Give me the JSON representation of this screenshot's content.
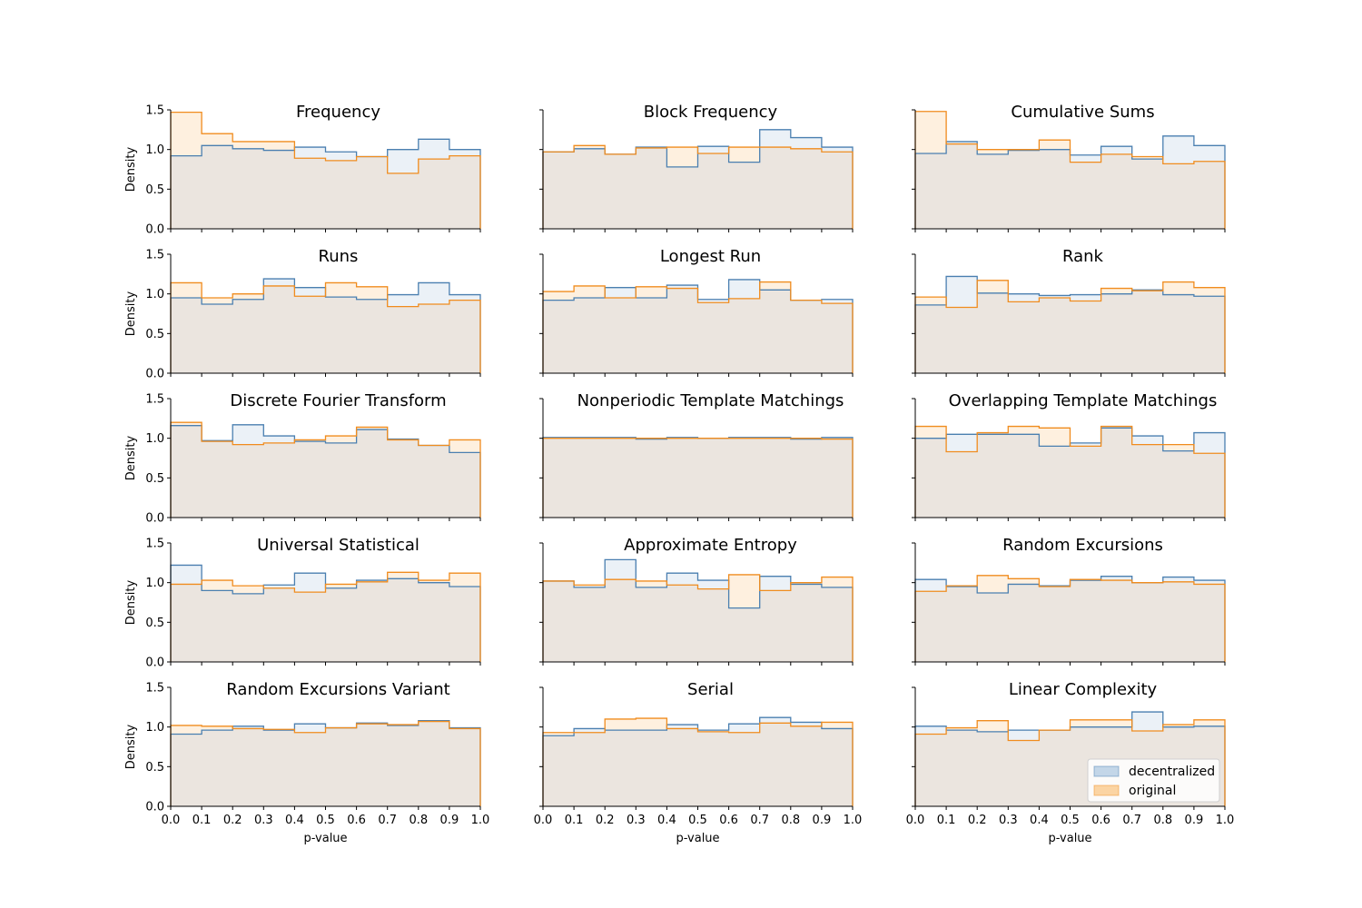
{
  "colors": {
    "decentralized": "#4a7fb0",
    "original": "#f08c1e",
    "decentralized_fill": "#dbe6f1",
    "original_fill": "#fde3c4",
    "overlap_fill": "#ebe5df"
  },
  "chart_data": {
    "type": "histogram",
    "xlabel": "p-value",
    "ylabel": "Density",
    "xlim": [
      0,
      1
    ],
    "ylim": [
      0,
      1.5
    ],
    "x_ticks": [
      "0.0",
      "0.1",
      "0.2",
      "0.3",
      "0.4",
      "0.5",
      "0.6",
      "0.7",
      "0.8",
      "0.9",
      "1.0"
    ],
    "y_ticks": [
      "0.0",
      "0.5",
      "1.0",
      "1.5"
    ],
    "bin_edges": [
      0,
      0.1,
      0.2,
      0.3,
      0.4,
      0.5,
      0.6,
      0.7,
      0.8,
      0.9,
      1.0
    ],
    "legend": {
      "position": "lower right",
      "entries": [
        "decentralized",
        "original"
      ]
    },
    "panels": [
      {
        "title": "Frequency",
        "decentralized": [
          0.92,
          1.05,
          1.01,
          0.99,
          1.03,
          0.97,
          0.91,
          1.0,
          1.13,
          1.0
        ],
        "original": [
          1.47,
          1.2,
          1.1,
          1.1,
          0.89,
          0.86,
          0.91,
          0.7,
          0.88,
          0.92
        ]
      },
      {
        "title": "Block Frequency",
        "decentralized": [
          0.97,
          1.01,
          0.94,
          1.03,
          0.78,
          1.04,
          0.84,
          1.25,
          1.15,
          1.03
        ],
        "original": [
          0.97,
          1.05,
          0.94,
          1.02,
          1.03,
          0.95,
          1.03,
          1.03,
          1.01,
          0.97
        ]
      },
      {
        "title": "Cumulative Sums",
        "decentralized": [
          0.95,
          1.1,
          0.94,
          0.99,
          1.0,
          0.93,
          1.04,
          0.88,
          1.17,
          1.05
        ],
        "original": [
          1.48,
          1.07,
          1.0,
          1.0,
          1.12,
          0.84,
          0.94,
          0.91,
          0.82,
          0.85
        ]
      },
      {
        "title": "Runs",
        "decentralized": [
          0.95,
          0.87,
          0.93,
          1.19,
          1.08,
          0.96,
          0.93,
          0.99,
          1.14,
          0.99
        ],
        "original": [
          1.14,
          0.95,
          1.0,
          1.1,
          0.97,
          1.14,
          1.09,
          0.84,
          0.87,
          0.92
        ]
      },
      {
        "title": "Longest Run",
        "decentralized": [
          0.92,
          0.95,
          1.08,
          0.95,
          1.11,
          0.93,
          1.18,
          1.05,
          0.92,
          0.93
        ],
        "original": [
          1.03,
          1.1,
          0.95,
          1.09,
          1.07,
          0.89,
          0.94,
          1.15,
          0.92,
          0.88
        ]
      },
      {
        "title": "Rank",
        "decentralized": [
          0.86,
          1.22,
          1.01,
          1.0,
          0.98,
          0.99,
          1.0,
          1.05,
          0.99,
          0.97
        ],
        "original": [
          0.96,
          0.83,
          1.17,
          0.9,
          0.95,
          0.91,
          1.07,
          1.04,
          1.15,
          1.08
        ]
      },
      {
        "title": "Discrete Fourier Transform",
        "decentralized": [
          1.16,
          0.97,
          1.17,
          1.03,
          0.96,
          0.94,
          1.11,
          0.99,
          0.91,
          0.82
        ],
        "original": [
          1.2,
          0.96,
          0.92,
          0.94,
          0.98,
          1.03,
          1.14,
          0.98,
          0.91,
          0.98
        ]
      },
      {
        "title": "Nonperiodic Template Matchings",
        "decentralized": [
          1.01,
          1.01,
          1.01,
          0.99,
          1.01,
          1.0,
          1.01,
          1.01,
          0.99,
          1.01
        ],
        "original": [
          1.0,
          1.0,
          1.0,
          1.0,
          1.0,
          1.0,
          1.0,
          1.0,
          1.0,
          0.99
        ]
      },
      {
        "title": "Overlapping Template Matchings",
        "decentralized": [
          1.0,
          1.05,
          1.05,
          1.05,
          0.9,
          0.94,
          1.13,
          1.03,
          0.84,
          1.07
        ],
        "original": [
          1.15,
          0.83,
          1.07,
          1.15,
          1.13,
          0.9,
          1.15,
          0.92,
          0.92,
          0.81
        ]
      },
      {
        "title": "Universal Statistical",
        "decentralized": [
          1.22,
          0.9,
          0.86,
          0.97,
          1.12,
          0.93,
          1.03,
          1.05,
          1.0,
          0.95
        ],
        "original": [
          0.98,
          1.03,
          0.96,
          0.93,
          0.88,
          0.98,
          1.01,
          1.13,
          1.03,
          1.12
        ]
      },
      {
        "title": "Approximate Entropy",
        "decentralized": [
          1.02,
          0.94,
          1.29,
          0.94,
          1.12,
          1.03,
          0.68,
          1.08,
          0.98,
          0.94
        ],
        "original": [
          1.02,
          0.97,
          1.04,
          1.02,
          0.97,
          0.92,
          1.1,
          0.9,
          1.0,
          1.07
        ]
      },
      {
        "title": "Random Excursions",
        "decentralized": [
          1.04,
          0.95,
          0.87,
          0.98,
          0.96,
          1.03,
          1.08,
          1.0,
          1.07,
          1.03
        ],
        "original": [
          0.89,
          0.96,
          1.09,
          1.05,
          0.95,
          1.04,
          1.03,
          1.0,
          1.01,
          0.98
        ]
      },
      {
        "title": "Random Excursions Variant",
        "decentralized": [
          0.91,
          0.96,
          1.01,
          0.96,
          1.04,
          0.99,
          1.05,
          1.02,
          1.08,
          0.99
        ],
        "original": [
          1.02,
          1.01,
          0.98,
          0.97,
          0.93,
          0.99,
          1.04,
          1.03,
          1.07,
          0.98
        ]
      },
      {
        "title": "Serial",
        "decentralized": [
          0.89,
          0.98,
          0.96,
          0.96,
          1.03,
          0.96,
          1.04,
          1.12,
          1.06,
          0.98
        ],
        "original": [
          0.93,
          0.93,
          1.1,
          1.11,
          0.98,
          0.94,
          0.93,
          1.05,
          1.01,
          1.06
        ]
      },
      {
        "title": "Linear Complexity",
        "decentralized": [
          1.01,
          0.96,
          0.94,
          0.96,
          0.96,
          1.0,
          1.0,
          1.19,
          1.0,
          1.01
        ],
        "original": [
          0.91,
          0.99,
          1.08,
          0.83,
          0.96,
          1.09,
          1.09,
          0.95,
          1.03,
          1.09
        ]
      }
    ]
  }
}
